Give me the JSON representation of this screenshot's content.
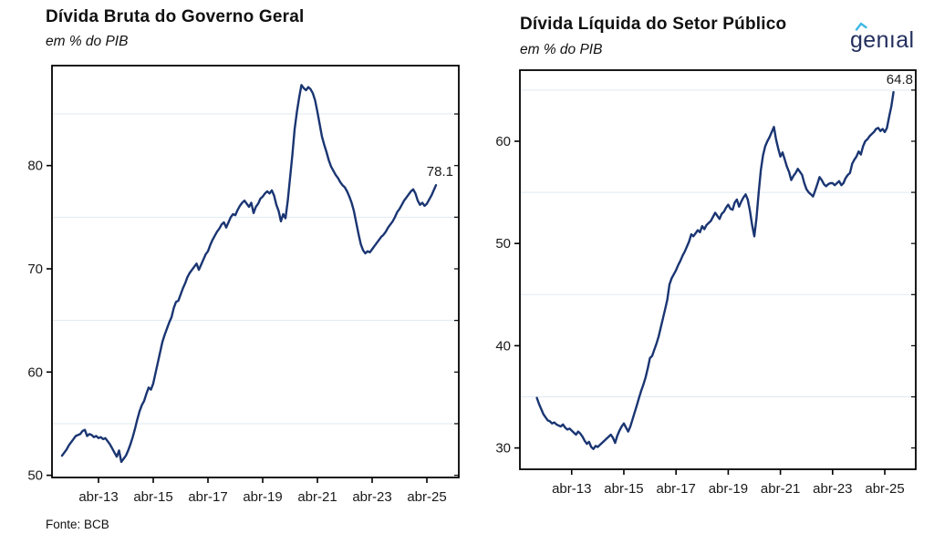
{
  "page_background": "#ffffff",
  "source_note": "Fonte: BCB",
  "logo": {
    "text": "genıal",
    "color": "#232f5e",
    "accent_color": "#3eb8e5"
  },
  "style": {
    "line_color": "#1a3572",
    "gridline_color": "#dfe9f2",
    "axis_color": "#000000",
    "label_color": "#1a1a1a"
  },
  "charts": [
    {
      "title": "Dívida Bruta do Governo Geral",
      "subtitle": "em % do PIB",
      "end_label": "78.1",
      "chart_data": {
        "type": "line",
        "series_name": "Dívida Bruta do Governo Geral (em % do PIB)",
        "frequency": "monthly",
        "x_tick_labels": [
          "abr-13",
          "abr-15",
          "abr-17",
          "abr-19",
          "abr-21",
          "abr-23",
          "abr-25"
        ],
        "x_tick_month_indices": [
          16,
          40,
          64,
          88,
          112,
          136,
          160
        ],
        "y_ticks": [
          50,
          60,
          70,
          80
        ],
        "y_minor_gridlines": [
          55,
          65,
          75,
          85
        ],
        "ylim": [
          49.8,
          89.7
        ],
        "grid": true,
        "values": [
          51.9,
          52.2,
          52.5,
          52.9,
          53.2,
          53.5,
          53.8,
          53.9,
          54.0,
          54.3,
          54.4,
          53.8,
          54.0,
          53.9,
          53.7,
          53.8,
          53.6,
          53.7,
          53.5,
          53.6,
          53.3,
          53.0,
          52.6,
          52.2,
          51.8,
          52.4,
          51.3,
          51.6,
          51.9,
          52.4,
          53.0,
          53.7,
          54.5,
          55.4,
          56.2,
          56.8,
          57.2,
          57.9,
          58.5,
          58.3,
          58.9,
          59.9,
          60.9,
          61.9,
          62.9,
          63.6,
          64.2,
          64.8,
          65.3,
          66.2,
          66.8,
          66.9,
          67.5,
          68.1,
          68.6,
          69.2,
          69.6,
          69.9,
          70.2,
          70.5,
          69.9,
          70.4,
          70.9,
          71.4,
          71.7,
          72.3,
          72.8,
          73.2,
          73.6,
          73.9,
          74.3,
          74.5,
          74.0,
          74.5,
          75.0,
          75.3,
          75.2,
          75.7,
          76.1,
          76.4,
          76.6,
          76.3,
          76.0,
          76.4,
          75.4,
          76.0,
          76.3,
          76.8,
          77.0,
          77.3,
          77.5,
          77.3,
          77.6,
          77.1,
          76.2,
          75.6,
          74.6,
          75.3,
          74.9,
          76.6,
          78.8,
          81.0,
          83.5,
          85.2,
          86.6,
          87.8,
          87.5,
          87.3,
          87.6,
          87.4,
          87.0,
          86.3,
          85.2,
          84.0,
          82.8,
          82.0,
          81.3,
          80.5,
          79.9,
          79.5,
          79.1,
          78.8,
          78.4,
          78.1,
          77.9,
          77.5,
          77.0,
          76.4,
          75.6,
          74.5,
          73.4,
          72.4,
          71.8,
          71.5,
          71.7,
          71.6,
          71.9,
          72.2,
          72.5,
          72.8,
          73.1,
          73.3,
          73.6,
          74.0,
          74.3,
          74.6,
          75.0,
          75.5,
          75.8,
          76.2,
          76.6,
          76.9,
          77.2,
          77.5,
          77.7,
          77.3,
          76.6,
          76.2,
          76.4,
          76.1,
          76.3,
          76.7,
          77.1,
          77.6,
          78.1
        ]
      }
    },
    {
      "title": "Dívida Líquida do Setor Público",
      "subtitle": "em % do PIB",
      "end_label": "64.8",
      "chart_data": {
        "type": "line",
        "series_name": "Dívida Líquida do Setor Público (em % do PIB)",
        "frequency": "monthly",
        "x_tick_labels": [
          "abr-13",
          "abr-15",
          "abr-17",
          "abr-19",
          "abr-21",
          "abr-23",
          "abr-25"
        ],
        "x_tick_month_indices": [
          16,
          40,
          64,
          88,
          112,
          136,
          160
        ],
        "y_ticks": [
          30,
          40,
          50,
          60
        ],
        "y_minor_gridlines": [
          35,
          45,
          55,
          65
        ],
        "ylim": [
          27.9,
          67.0
        ],
        "grid": true,
        "values": [
          34.9,
          34.3,
          33.8,
          33.3,
          33.0,
          32.7,
          32.6,
          32.4,
          32.5,
          32.3,
          32.2,
          32.1,
          32.3,
          32.0,
          31.8,
          31.9,
          31.7,
          31.5,
          31.3,
          31.6,
          31.4,
          31.1,
          30.7,
          30.4,
          30.6,
          30.1,
          29.9,
          30.2,
          30.1,
          30.3,
          30.5,
          30.7,
          30.9,
          31.1,
          31.3,
          31.0,
          30.5,
          31.2,
          31.7,
          32.1,
          32.4,
          32.0,
          31.6,
          32.1,
          32.8,
          33.5,
          34.2,
          34.9,
          35.6,
          36.2,
          36.9,
          37.8,
          38.8,
          39.0,
          39.6,
          40.2,
          40.9,
          41.8,
          42.7,
          43.6,
          44.5,
          46.0,
          46.6,
          47.0,
          47.4,
          47.9,
          48.3,
          48.8,
          49.2,
          49.7,
          50.2,
          50.9,
          50.7,
          51.0,
          51.3,
          51.1,
          51.7,
          51.4,
          51.8,
          52.0,
          52.2,
          52.6,
          53.0,
          52.7,
          52.4,
          52.9,
          53.1,
          53.5,
          53.8,
          53.4,
          53.3,
          54.0,
          54.3,
          53.6,
          54.1,
          54.5,
          54.8,
          54.3,
          53.2,
          51.8,
          50.7,
          52.5,
          55.0,
          57.2,
          58.6,
          59.5,
          60.0,
          60.4,
          60.9,
          61.4,
          60.2,
          59.3,
          58.5,
          58.9,
          58.2,
          57.5,
          57.0,
          56.2,
          56.6,
          56.9,
          57.3,
          57.0,
          56.7,
          55.9,
          55.3,
          55.0,
          54.8,
          54.6,
          55.2,
          55.8,
          56.5,
          56.2,
          55.8,
          55.6,
          55.8,
          55.9,
          55.9,
          55.7,
          55.9,
          56.1,
          55.7,
          55.9,
          56.4,
          56.7,
          56.9,
          57.8,
          58.2,
          58.5,
          59.0,
          58.7,
          59.5,
          60.0,
          60.2,
          60.5,
          60.7,
          60.9,
          61.2,
          61.3,
          61.0,
          61.2,
          60.9,
          61.3,
          62.4,
          63.4,
          64.8
        ]
      }
    }
  ]
}
